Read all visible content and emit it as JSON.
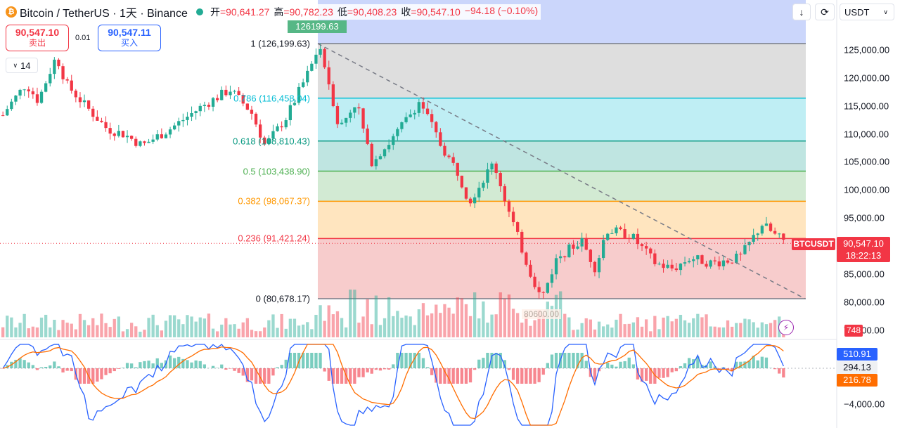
{
  "header": {
    "title": "Bitcoin / TetherUS · 1天 · Binance",
    "coin_icon": "bitcoin-icon",
    "ohlc": [
      {
        "label": "开",
        "value": "=90,641.27"
      },
      {
        "label": "高",
        "value": "=90,782.23"
      },
      {
        "label": "低",
        "value": "=90,408.23"
      },
      {
        "label": "收",
        "value": "=90,547.10"
      },
      {
        "label": "",
        "value": "−94.18 (−0.10%)"
      }
    ]
  },
  "trade": {
    "sell_price": "90,547.10",
    "sell_label": "卖出",
    "spread": "0.01",
    "buy_price": "90,547.11",
    "buy_label": "买入",
    "collapse_value": "14"
  },
  "toolbar": {
    "arrow_icon": "down-arrow-icon",
    "reset_icon": "refresh-icon",
    "currency": "USDT"
  },
  "price_axis": {
    "ticks": [
      "125,000.00",
      "120,000.00",
      "115,000.00",
      "110,000.00",
      "105,000.00",
      "100,000.00",
      "95,000.00",
      "90,000.00",
      "85,000.00",
      "80,000.00",
      "75,000.00"
    ],
    "tick_values": [
      125000,
      120000,
      115000,
      110000,
      105000,
      100000,
      95000,
      90000,
      85000,
      80000,
      75000
    ],
    "current_price": "90,547.10",
    "countdown": "18:22:13",
    "symbol": "BTCUSDT",
    "volume": "748",
    "macd_axis_label": "−4,000.00"
  },
  "macd": {
    "macd_value": "510.91",
    "histogram_value": "294.13",
    "signal_value": "216.78"
  },
  "fib": {
    "high_tag": "126199.63",
    "low_tag": "80600.00",
    "levels": [
      {
        "label": "1 (126,199.63)",
        "value": 126199.63,
        "color": "#787b86"
      },
      {
        "label": "0.786 (116,458.04)",
        "value": 116458.04,
        "color": "#00bcd4"
      },
      {
        "label": "0.618 (108,810.43)",
        "value": 108810.43,
        "color": "#089981"
      },
      {
        "label": "0.5 (103,438.90)",
        "value": 103438.9,
        "color": "#4caf50"
      },
      {
        "label": "0.382 (98,067.37)",
        "value": 98067.37,
        "color": "#ff9800"
      },
      {
        "label": "0.236 (91,421.24)",
        "value": 91421.24,
        "color": "#f23645"
      },
      {
        "label": "0 (80,678.17)",
        "value": 80678.17,
        "color": "#787b86"
      }
    ]
  },
  "colors": {
    "up": "#22ab94",
    "down": "#f23645",
    "macd_line": "#2962ff",
    "signal_line": "#ff6d00"
  }
}
